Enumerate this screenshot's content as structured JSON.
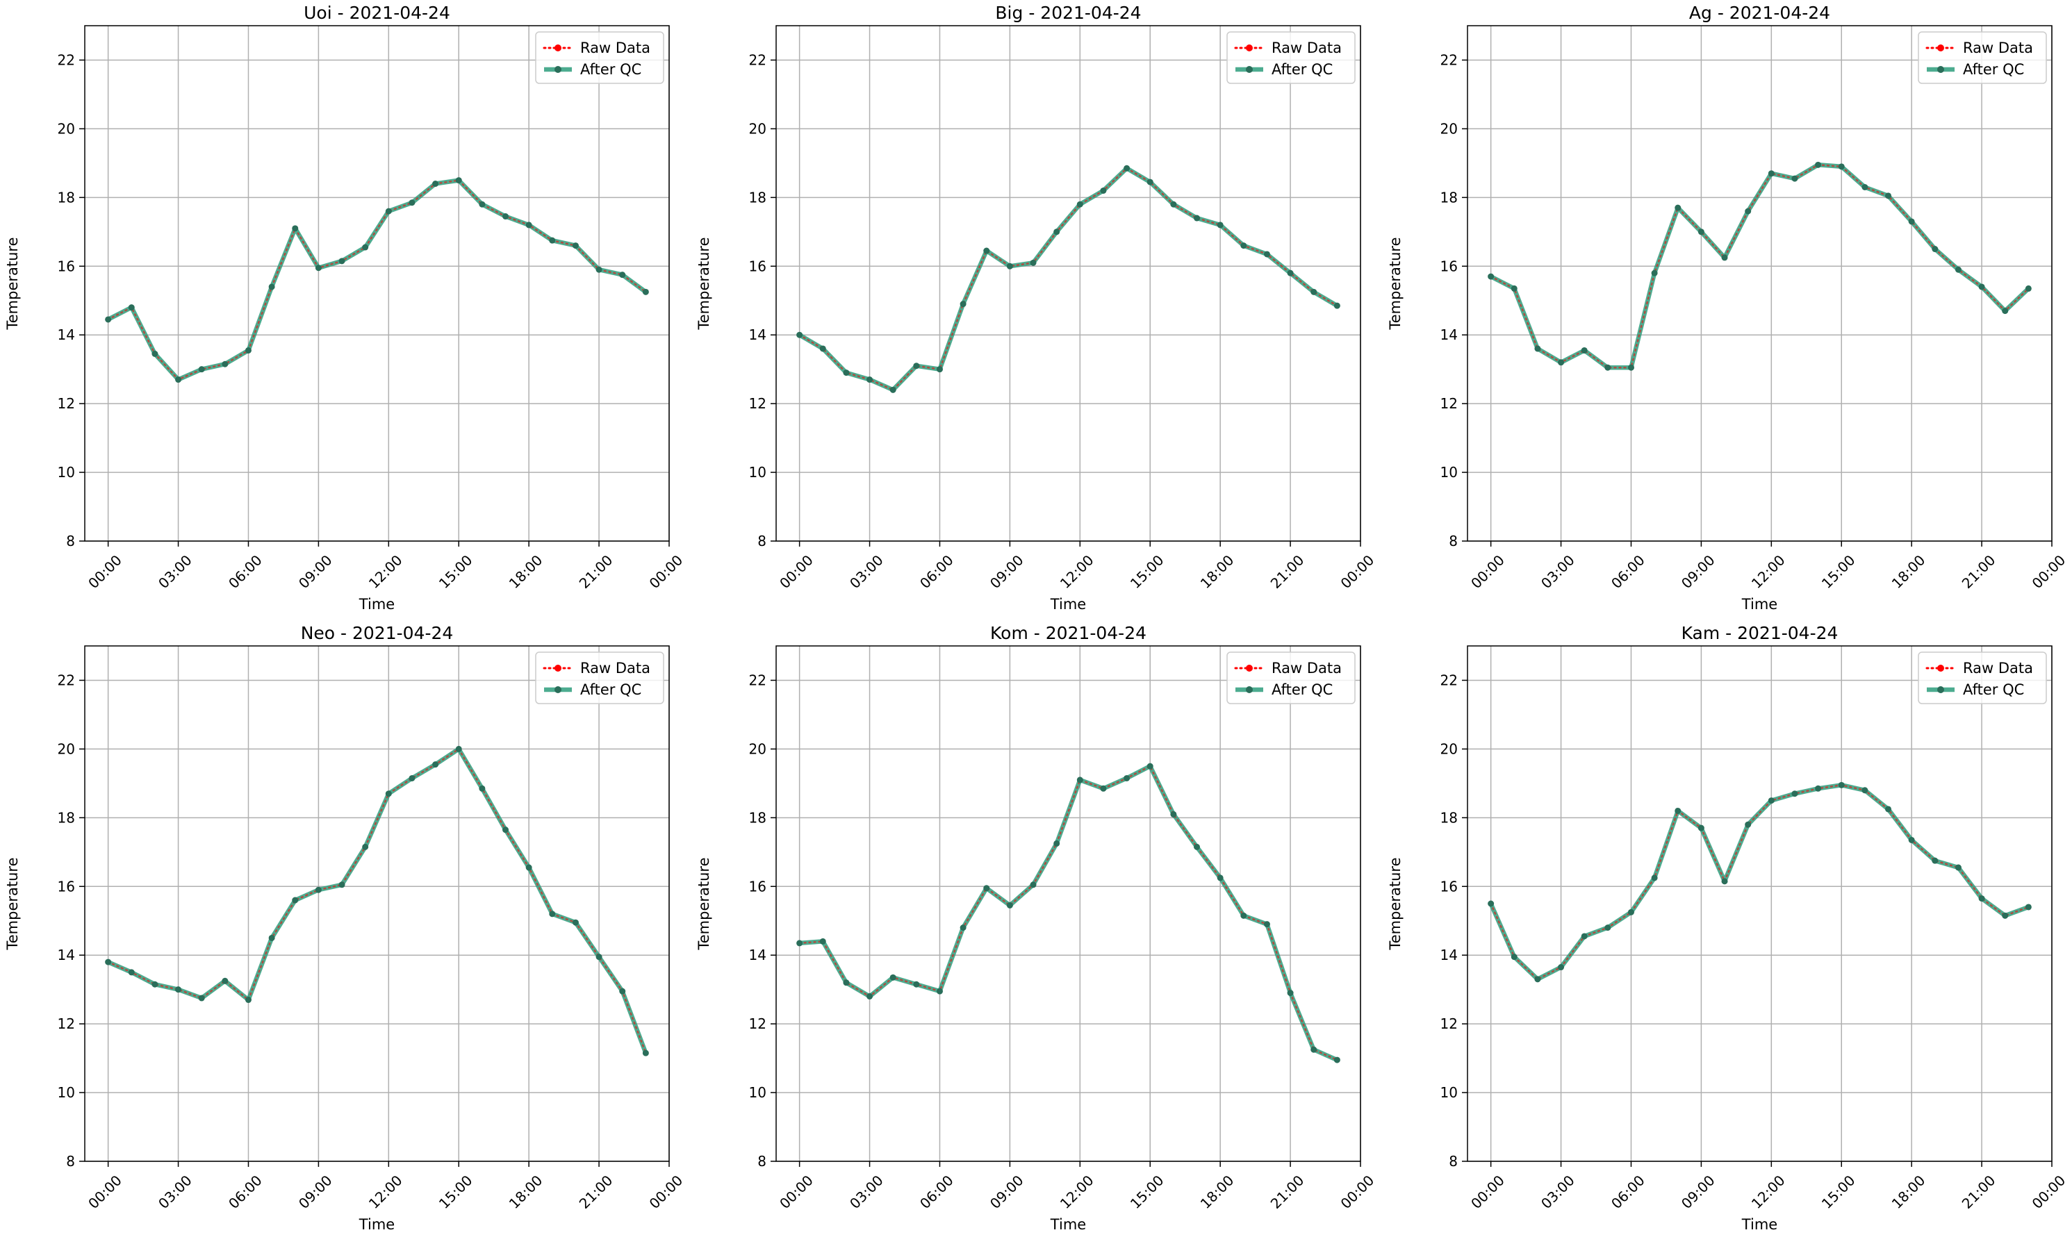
{
  "figure": {
    "background": "#ffffff"
  },
  "colors": {
    "raw": "#ff0000",
    "qc": "#2e9e7c",
    "qc_marker": "#2a6e5a",
    "grid": "#b0b0b0"
  },
  "legend": {
    "raw_label": "Raw Data",
    "qc_label": "After QC",
    "placement": "upper right"
  },
  "chart_data": [
    {
      "type": "line",
      "title": "Uoi - 2021-04-24",
      "xlabel": "Time",
      "ylabel": "Temperature",
      "ylim": [
        8,
        23
      ],
      "yticks": [
        8,
        10,
        12,
        14,
        16,
        18,
        20,
        22
      ],
      "xlim_hours": [
        -1,
        24
      ],
      "xticks_hours": [
        0,
        3,
        6,
        9,
        12,
        15,
        18,
        21,
        24
      ],
      "xtick_labels": [
        "00:00",
        "03:00",
        "06:00",
        "09:00",
        "12:00",
        "15:00",
        "18:00",
        "21:00",
        "00:00"
      ],
      "grid": true,
      "x_hours": [
        0,
        1,
        2,
        3,
        4,
        5,
        6,
        7,
        8,
        9,
        10,
        11,
        12,
        13,
        14,
        15,
        16,
        17,
        18,
        19,
        20,
        21,
        22,
        23
      ],
      "series": [
        {
          "name": "Raw Data",
          "values": [
            14.45,
            14.8,
            13.45,
            12.7,
            13.0,
            13.15,
            13.55,
            15.4,
            17.1,
            15.95,
            16.15,
            16.55,
            17.6,
            17.85,
            18.4,
            18.5,
            17.8,
            17.45,
            17.2,
            16.75,
            16.6,
            15.9,
            15.75,
            15.25
          ]
        },
        {
          "name": "After QC",
          "values": [
            14.45,
            14.8,
            13.45,
            12.7,
            13.0,
            13.15,
            13.55,
            15.4,
            17.1,
            15.95,
            16.15,
            16.55,
            17.6,
            17.85,
            18.4,
            18.5,
            17.8,
            17.45,
            17.2,
            16.75,
            16.6,
            15.9,
            15.75,
            15.25
          ]
        }
      ]
    },
    {
      "type": "line",
      "title": "Big - 2021-04-24",
      "xlabel": "Time",
      "ylabel": "Temperature",
      "ylim": [
        8,
        23
      ],
      "yticks": [
        8,
        10,
        12,
        14,
        16,
        18,
        20,
        22
      ],
      "xlim_hours": [
        -1,
        24
      ],
      "xticks_hours": [
        0,
        3,
        6,
        9,
        12,
        15,
        18,
        21,
        24
      ],
      "xtick_labels": [
        "00:00",
        "03:00",
        "06:00",
        "09:00",
        "12:00",
        "15:00",
        "18:00",
        "21:00",
        "00:00"
      ],
      "grid": true,
      "x_hours": [
        0,
        1,
        2,
        3,
        4,
        5,
        6,
        7,
        8,
        9,
        10,
        11,
        12,
        13,
        14,
        15,
        16,
        17,
        18,
        19,
        20,
        21,
        22,
        23
      ],
      "series": [
        {
          "name": "Raw Data",
          "values": [
            14.0,
            13.6,
            12.9,
            12.7,
            12.4,
            13.1,
            13.0,
            14.9,
            16.45,
            16.0,
            16.1,
            17.0,
            17.8,
            18.2,
            18.85,
            18.45,
            17.8,
            17.4,
            17.2,
            16.6,
            16.35,
            15.8,
            15.25,
            14.85
          ]
        },
        {
          "name": "After QC",
          "values": [
            14.0,
            13.6,
            12.9,
            12.7,
            12.4,
            13.1,
            13.0,
            14.9,
            16.45,
            16.0,
            16.1,
            17.0,
            17.8,
            18.2,
            18.85,
            18.45,
            17.8,
            17.4,
            17.2,
            16.6,
            16.35,
            15.8,
            15.25,
            14.85
          ]
        }
      ]
    },
    {
      "type": "line",
      "title": "Ag - 2021-04-24",
      "xlabel": "Time",
      "ylabel": "Temperature",
      "ylim": [
        8,
        23
      ],
      "yticks": [
        8,
        10,
        12,
        14,
        16,
        18,
        20,
        22
      ],
      "xlim_hours": [
        -1,
        24
      ],
      "xticks_hours": [
        0,
        3,
        6,
        9,
        12,
        15,
        18,
        21,
        24
      ],
      "xtick_labels": [
        "00:00",
        "03:00",
        "06:00",
        "09:00",
        "12:00",
        "15:00",
        "18:00",
        "21:00",
        "00:00"
      ],
      "grid": true,
      "x_hours": [
        0,
        1,
        2,
        3,
        4,
        5,
        6,
        7,
        8,
        9,
        10,
        11,
        12,
        13,
        14,
        15,
        16,
        17,
        18,
        19,
        20,
        21,
        22,
        23
      ],
      "series": [
        {
          "name": "Raw Data",
          "values": [
            15.7,
            15.35,
            13.6,
            13.2,
            13.55,
            13.05,
            13.05,
            15.8,
            17.7,
            17.0,
            16.25,
            17.6,
            18.7,
            18.55,
            18.95,
            18.9,
            18.3,
            18.05,
            17.3,
            16.5,
            15.9,
            15.4,
            14.7,
            15.35
          ]
        },
        {
          "name": "After QC",
          "values": [
            15.7,
            15.35,
            13.6,
            13.2,
            13.55,
            13.05,
            13.05,
            15.8,
            17.7,
            17.0,
            16.25,
            17.6,
            18.7,
            18.55,
            18.95,
            18.9,
            18.3,
            18.05,
            17.3,
            16.5,
            15.9,
            15.4,
            14.7,
            15.35
          ]
        }
      ]
    },
    {
      "type": "line",
      "title": "Neo - 2021-04-24",
      "xlabel": "Time",
      "ylabel": "Temperature",
      "ylim": [
        8,
        23
      ],
      "yticks": [
        8,
        10,
        12,
        14,
        16,
        18,
        20,
        22
      ],
      "xlim_hours": [
        -1,
        24
      ],
      "xticks_hours": [
        0,
        3,
        6,
        9,
        12,
        15,
        18,
        21,
        24
      ],
      "xtick_labels": [
        "00:00",
        "03:00",
        "06:00",
        "09:00",
        "12:00",
        "15:00",
        "18:00",
        "21:00",
        "00:00"
      ],
      "grid": true,
      "x_hours": [
        0,
        1,
        2,
        3,
        4,
        5,
        6,
        7,
        8,
        9,
        10,
        11,
        12,
        13,
        14,
        15,
        16,
        17,
        18,
        19,
        20,
        21,
        22,
        23
      ],
      "series": [
        {
          "name": "Raw Data",
          "values": [
            13.8,
            13.5,
            13.15,
            13.0,
            12.75,
            13.25,
            12.7,
            14.5,
            15.6,
            15.9,
            16.05,
            17.15,
            18.7,
            19.15,
            19.55,
            20.0,
            18.85,
            17.65,
            16.55,
            15.2,
            14.95,
            13.95,
            12.95,
            11.15
          ]
        },
        {
          "name": "After QC",
          "values": [
            13.8,
            13.5,
            13.15,
            13.0,
            12.75,
            13.25,
            12.7,
            14.5,
            15.6,
            15.9,
            16.05,
            17.15,
            18.7,
            19.15,
            19.55,
            20.0,
            18.85,
            17.65,
            16.55,
            15.2,
            14.95,
            13.95,
            12.95,
            11.15
          ]
        }
      ]
    },
    {
      "type": "line",
      "title": "Kom - 2021-04-24",
      "xlabel": "Time",
      "ylabel": "Temperature",
      "ylim": [
        8,
        23
      ],
      "yticks": [
        8,
        10,
        12,
        14,
        16,
        18,
        20,
        22
      ],
      "xlim_hours": [
        -1,
        24
      ],
      "xticks_hours": [
        0,
        3,
        6,
        9,
        12,
        15,
        18,
        21,
        24
      ],
      "xtick_labels": [
        "00:00",
        "03:00",
        "06:00",
        "09:00",
        "12:00",
        "15:00",
        "18:00",
        "21:00",
        "00:00"
      ],
      "grid": true,
      "x_hours": [
        0,
        1,
        2,
        3,
        4,
        5,
        6,
        7,
        8,
        9,
        10,
        11,
        12,
        13,
        14,
        15,
        16,
        17,
        18,
        19,
        20,
        21,
        22,
        23
      ],
      "series": [
        {
          "name": "Raw Data",
          "values": [
            14.35,
            14.4,
            13.2,
            12.8,
            13.35,
            13.15,
            12.95,
            14.8,
            15.95,
            15.45,
            16.05,
            17.25,
            19.1,
            18.85,
            19.15,
            19.5,
            18.1,
            17.15,
            16.25,
            15.15,
            14.9,
            12.9,
            11.25,
            10.95
          ]
        },
        {
          "name": "After QC",
          "values": [
            14.35,
            14.4,
            13.2,
            12.8,
            13.35,
            13.15,
            12.95,
            14.8,
            15.95,
            15.45,
            16.05,
            17.25,
            19.1,
            18.85,
            19.15,
            19.5,
            18.1,
            17.15,
            16.25,
            15.15,
            14.9,
            12.9,
            11.25,
            10.95
          ]
        }
      ]
    },
    {
      "type": "line",
      "title": "Kam - 2021-04-24",
      "xlabel": "Time",
      "ylabel": "Temperature",
      "ylim": [
        8,
        23
      ],
      "yticks": [
        8,
        10,
        12,
        14,
        16,
        18,
        20,
        22
      ],
      "xlim_hours": [
        -1,
        24
      ],
      "xticks_hours": [
        0,
        3,
        6,
        9,
        12,
        15,
        18,
        21,
        24
      ],
      "xtick_labels": [
        "00:00",
        "03:00",
        "06:00",
        "09:00",
        "12:00",
        "15:00",
        "18:00",
        "21:00",
        "00:00"
      ],
      "grid": true,
      "x_hours": [
        0,
        1,
        2,
        3,
        4,
        5,
        6,
        7,
        8,
        9,
        10,
        11,
        12,
        13,
        14,
        15,
        16,
        17,
        18,
        19,
        20,
        21,
        22,
        23
      ],
      "series": [
        {
          "name": "Raw Data",
          "values": [
            15.5,
            13.95,
            13.3,
            13.65,
            14.55,
            14.8,
            15.25,
            16.25,
            18.2,
            17.7,
            16.15,
            17.8,
            18.5,
            18.7,
            18.85,
            18.95,
            18.8,
            18.25,
            17.35,
            16.75,
            16.55,
            15.65,
            15.15,
            15.4
          ]
        },
        {
          "name": "After QC",
          "values": [
            15.5,
            13.95,
            13.3,
            13.65,
            14.55,
            14.8,
            15.25,
            16.25,
            18.2,
            17.7,
            16.15,
            17.8,
            18.5,
            18.7,
            18.85,
            18.95,
            18.8,
            18.25,
            17.35,
            16.75,
            16.55,
            15.65,
            15.15,
            15.4
          ]
        }
      ]
    }
  ]
}
